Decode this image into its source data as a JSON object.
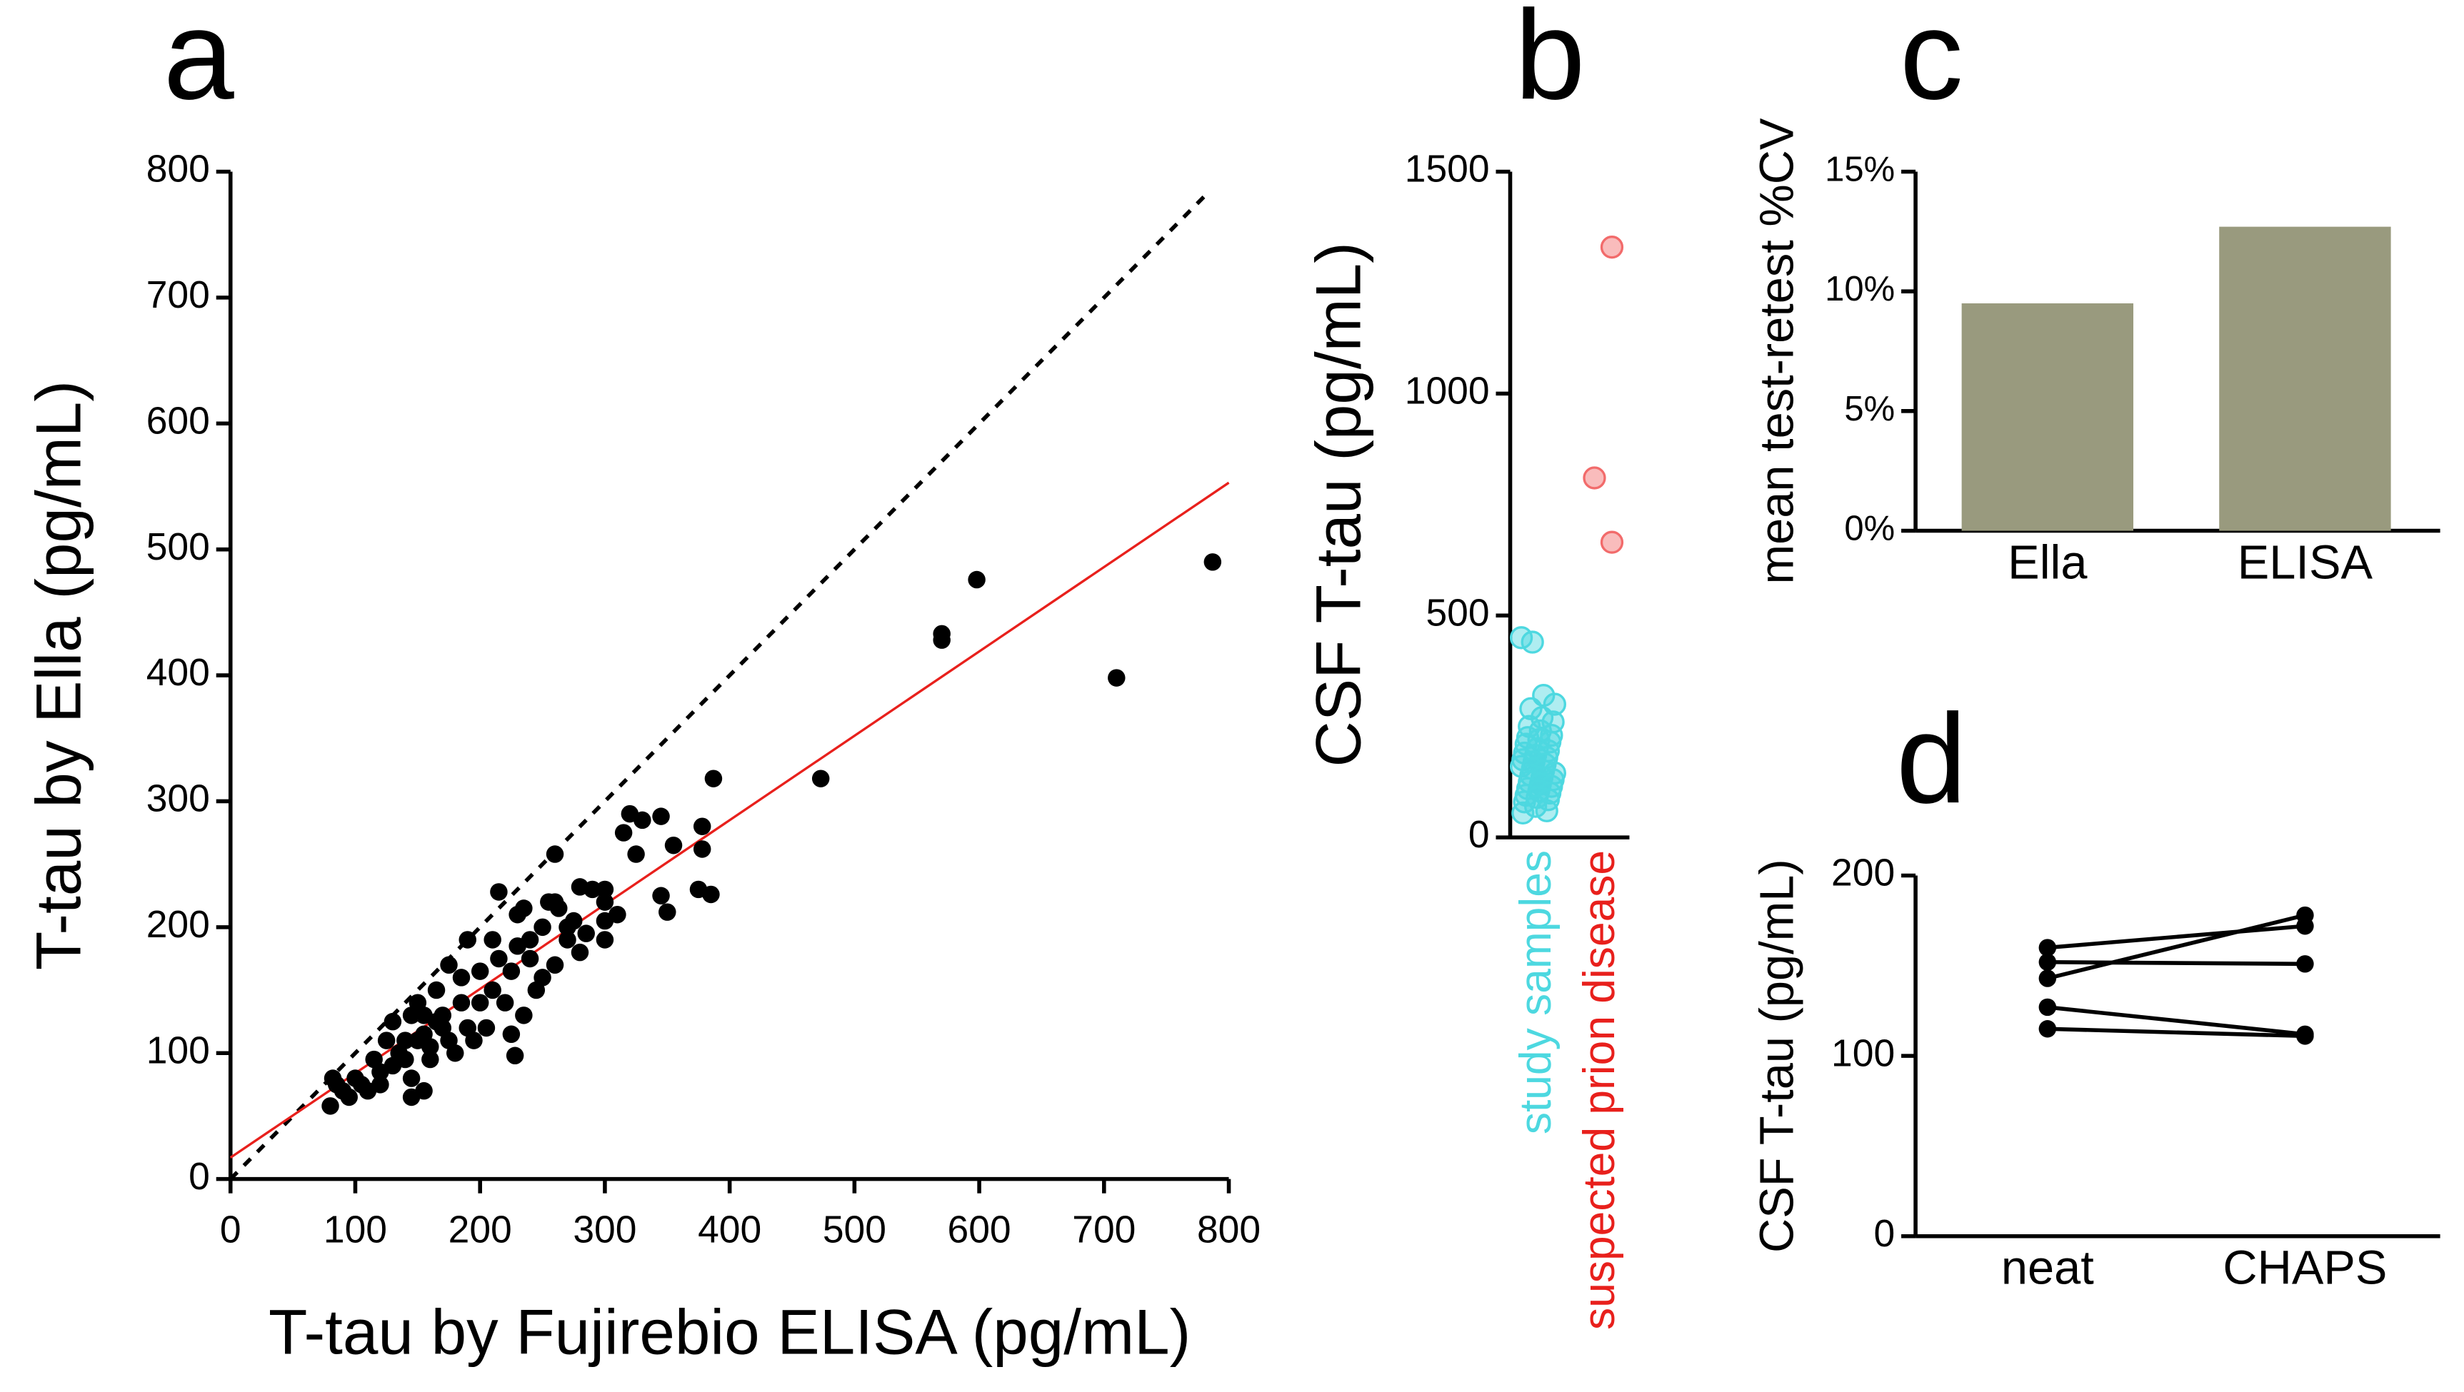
{
  "chart_data": [
    {
      "type": "scatter",
      "panel": "a",
      "x_label": "T-tau by Fujirebio ELISA (pg/mL)",
      "y_label": "T-tau by Ella (pg/mL)",
      "x": [
        787,
        710,
        598,
        570,
        570,
        473,
        387,
        385,
        378,
        378,
        375,
        350,
        345,
        345,
        325,
        320,
        315,
        300,
        300,
        290,
        280,
        275,
        260,
        255,
        250,
        260,
        240,
        230,
        228,
        225,
        220,
        215,
        210,
        200,
        190,
        185,
        180,
        175,
        170,
        165,
        160,
        155,
        150,
        145,
        140,
        135,
        130,
        125,
        120,
        115,
        110,
        100,
        95,
        90,
        85,
        80,
        82,
        200,
        210,
        230,
        240,
        250,
        260,
        270,
        280,
        300,
        310,
        195,
        185,
        170,
        155,
        145,
        140,
        130,
        120,
        105,
        215,
        225,
        235,
        245,
        205,
        190,
        175,
        165,
        160,
        150,
        155,
        145,
        235,
        330,
        355,
        300,
        285,
        270,
        263
      ],
      "y": [
        490,
        398,
        476,
        433,
        428,
        318,
        318,
        226,
        262,
        280,
        230,
        212,
        288,
        225,
        258,
        290,
        275,
        205,
        230,
        230,
        232,
        205,
        220,
        220,
        200,
        258,
        190,
        210,
        98,
        115,
        140,
        228,
        190,
        165,
        190,
        140,
        100,
        170,
        120,
        150,
        95,
        130,
        140,
        80,
        110,
        100,
        125,
        110,
        85,
        95,
        70,
        80,
        65,
        70,
        75,
        58,
        80,
        140,
        150,
        185,
        175,
        160,
        170,
        190,
        180,
        190,
        210,
        110,
        160,
        130,
        115,
        130,
        95,
        90,
        75,
        75,
        175,
        165,
        130,
        150,
        120,
        120,
        110,
        125,
        105,
        110,
        70,
        65,
        215,
        285,
        265,
        220,
        195,
        200,
        215
      ],
      "color": "#000000",
      "fit": {
        "intercept": 17,
        "slope": 0.67,
        "color": "#e8201c"
      },
      "xlim": [
        0,
        800
      ],
      "ylim": [
        0,
        800
      ],
      "xticks": [
        0,
        100,
        200,
        300,
        400,
        500,
        600,
        700,
        800
      ],
      "yticks": [
        0,
        100,
        200,
        300,
        400,
        500,
        600,
        700,
        800
      ]
    },
    {
      "type": "strip",
      "panel": "b",
      "y_label": "CSF T-tau (pg/mL)",
      "series": [
        {
          "name": "study samples",
          "color": "#4dd8e0",
          "values": [
            450,
            440,
            320,
            300,
            290,
            270,
            260,
            250,
            240,
            230,
            225,
            220,
            215,
            210,
            200,
            195,
            190,
            185,
            180,
            175,
            170,
            165,
            160,
            155,
            150,
            145,
            140,
            135,
            130,
            125,
            120,
            115,
            110,
            105,
            100,
            95,
            90,
            85,
            80,
            70,
            60,
            55
          ]
        },
        {
          "name": "suspected prion disease",
          "color": "#f26b6b",
          "values": [
            1330,
            810,
            665
          ]
        }
      ],
      "ylim": [
        0,
        1500
      ],
      "yticks": [
        0,
        500,
        1000,
        1500
      ]
    },
    {
      "type": "bar",
      "panel": "c",
      "y_label": "mean test-retest %CV",
      "categories": [
        "Ella",
        "ELISA"
      ],
      "values": [
        9.5,
        12.7
      ],
      "color": "#999a7e",
      "ylim": [
        0,
        15
      ],
      "yticks": [
        {
          "value": 0,
          "label": "0%"
        },
        {
          "value": 5,
          "label": "5%"
        },
        {
          "value": 10,
          "label": "10%"
        },
        {
          "value": 15,
          "label": "15%"
        }
      ]
    },
    {
      "type": "line",
      "panel": "d",
      "y_label": "CSF T-tau (pg/mL)",
      "categories": [
        "neat",
        "CHAPS"
      ],
      "color": "#000000",
      "series": [
        {
          "values": [
            152,
            151
          ]
        },
        {
          "values": [
            160,
            172
          ]
        },
        {
          "values": [
            143,
            178
          ]
        },
        {
          "values": [
            127,
            112
          ]
        },
        {
          "values": [
            115,
            111
          ]
        }
      ],
      "ylim": [
        0,
        200
      ],
      "yticks": [
        0,
        100,
        200
      ]
    }
  ]
}
